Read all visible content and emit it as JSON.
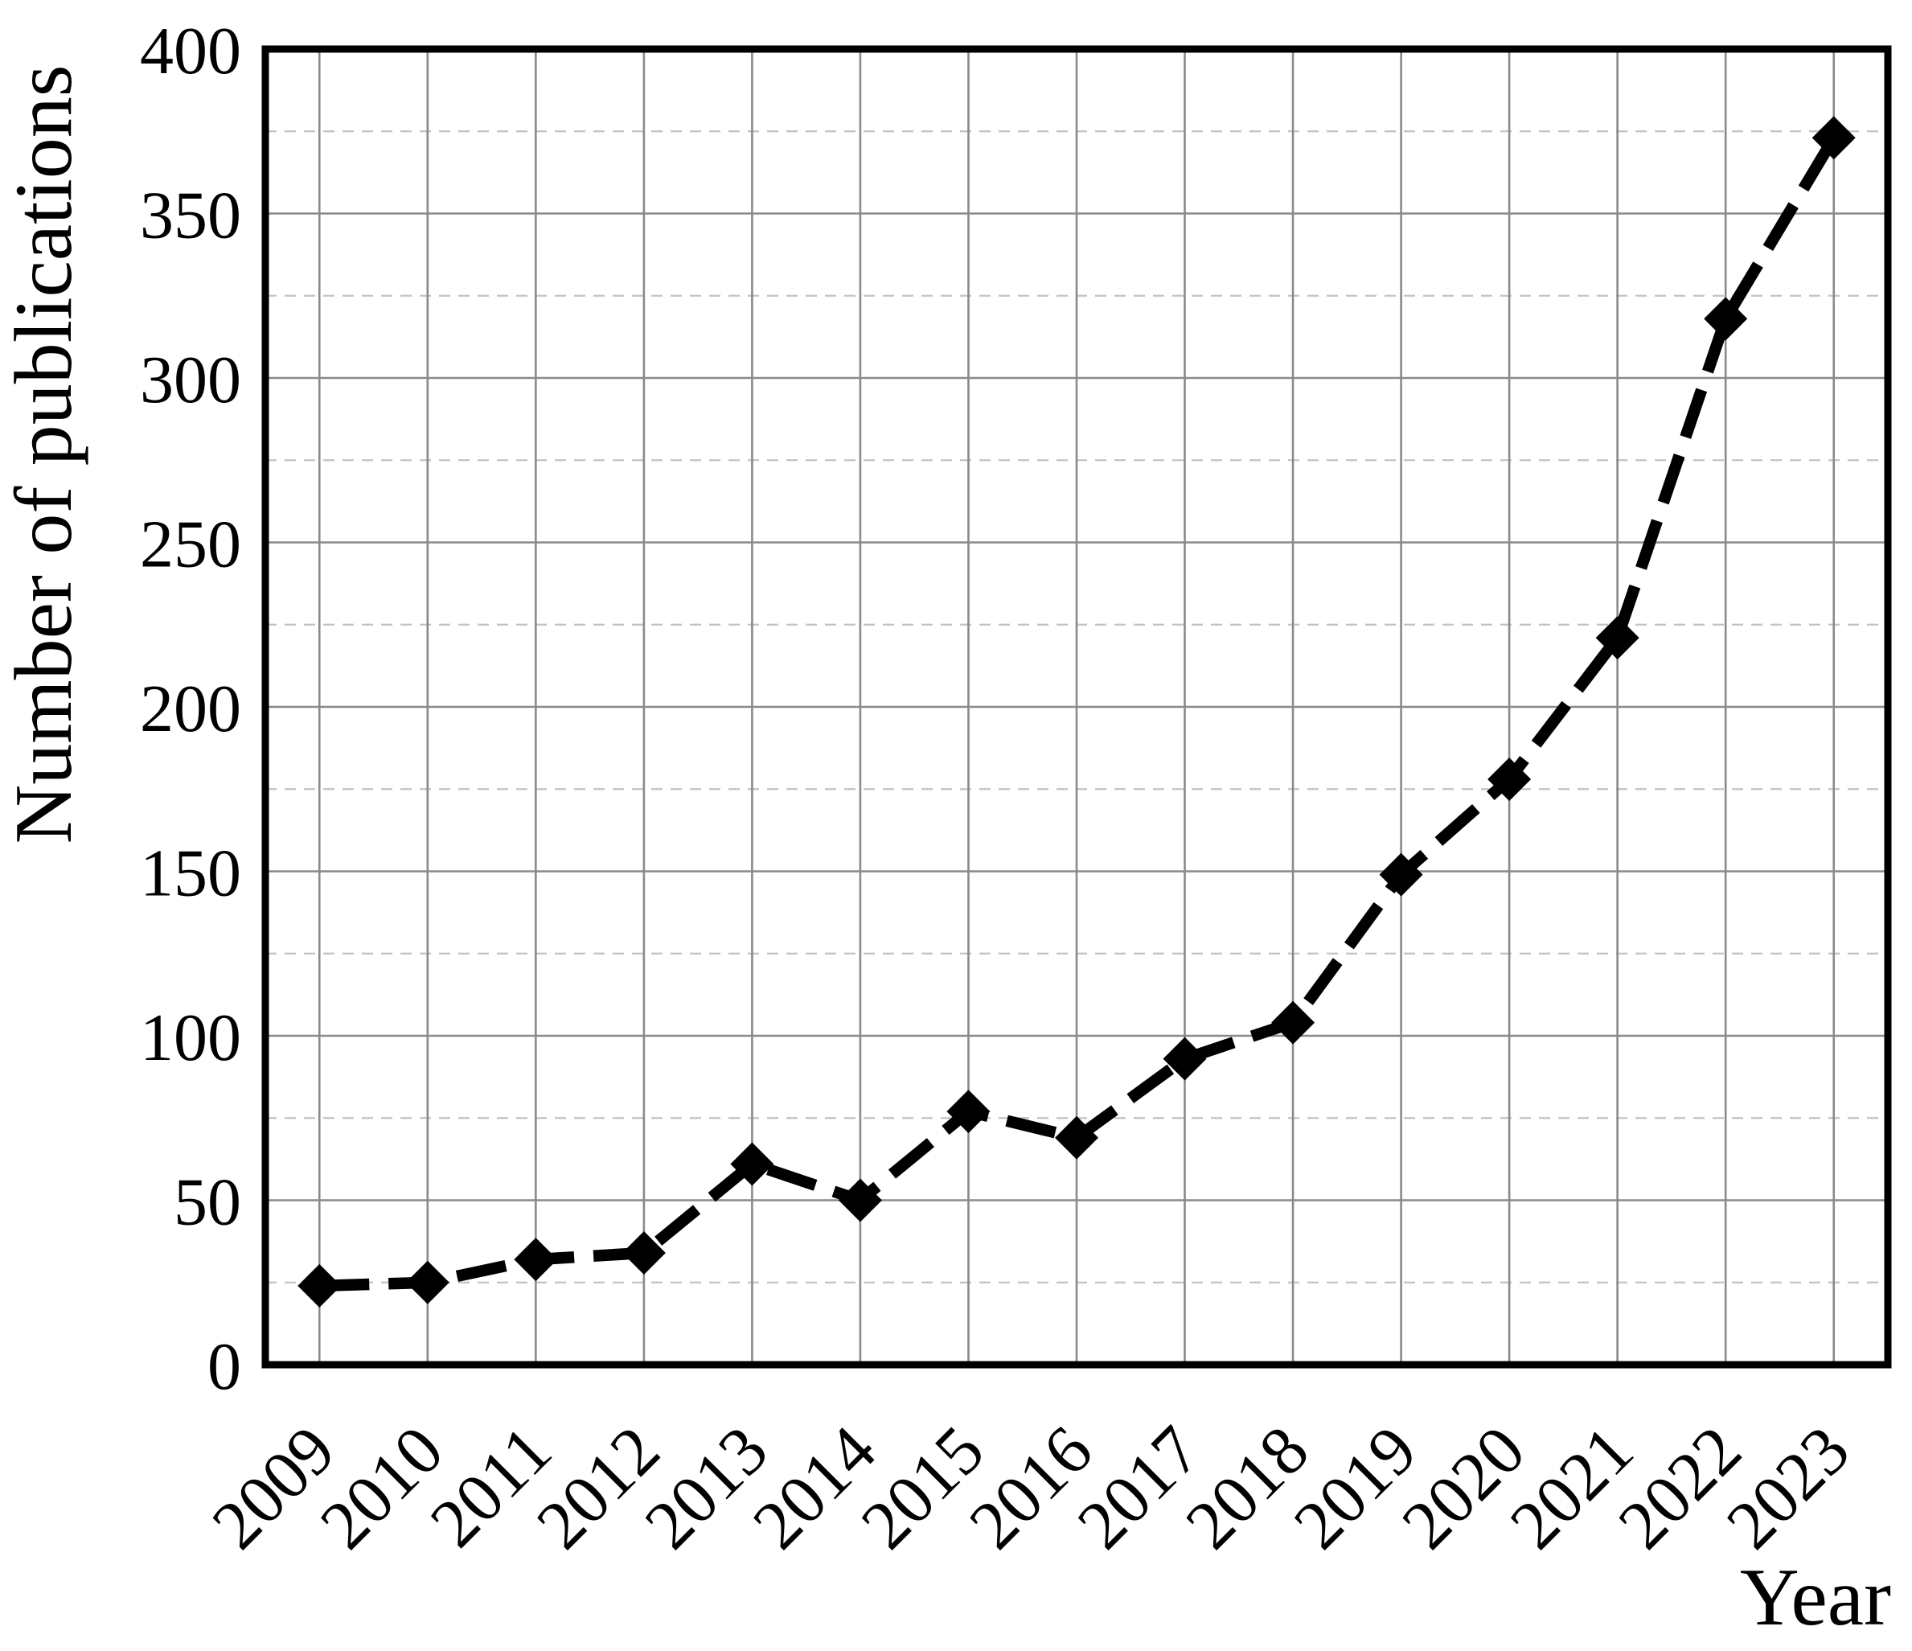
{
  "chart_data": {
    "type": "line",
    "title": "",
    "xlabel": "Year",
    "ylabel": "Number of publications",
    "x": [
      2009,
      2010,
      2011,
      2012,
      2013,
      2014,
      2015,
      2016,
      2017,
      2018,
      2019,
      2020,
      2021,
      2022,
      2023
    ],
    "xticklabels": [
      "2009",
      "2010",
      "2011",
      "2012",
      "2013",
      "2014",
      "2015",
      "2016",
      "2017",
      "2018",
      "2019",
      "2020",
      "2021",
      "2022",
      "2023"
    ],
    "series": [
      {
        "name": "Number of publications",
        "values": [
          24,
          25,
          32,
          34,
          61,
          50,
          77,
          69,
          93,
          104,
          149,
          178,
          221,
          318,
          373
        ]
      }
    ],
    "ylim": [
      0,
      400
    ],
    "yticks": [
      0,
      50,
      100,
      150,
      200,
      250,
      300,
      350,
      400
    ],
    "yminorticks": [
      25,
      75,
      125,
      175,
      225,
      275,
      325,
      375
    ],
    "grid": "major-solid-minor-dashed",
    "legend_position": "none",
    "marker": "diamond",
    "line_style": "dashed",
    "colors": {
      "line": "#000000",
      "marker": "#000000",
      "major_grid": "#8a8a8a",
      "minor_grid": "#c3c3c3",
      "border": "#000000",
      "text": "#000000",
      "background": "#ffffff"
    }
  }
}
